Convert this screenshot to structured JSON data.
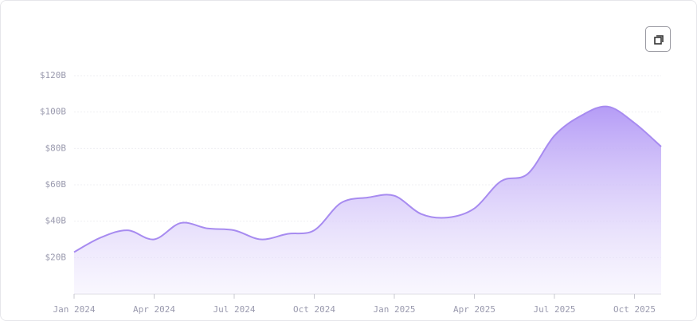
{
  "chart_data": {
    "type": "area",
    "categories": [
      "Jan 2024",
      null,
      null,
      "Apr 2024",
      null,
      null,
      "Jul 2024",
      null,
      null,
      "Oct 2024",
      null,
      null,
      "Jan 2025",
      null,
      null,
      "Apr 2025",
      null,
      null,
      "Jul 2025",
      null,
      null,
      "Oct 2025",
      null
    ],
    "values": [
      23,
      31,
      35,
      30,
      39,
      36,
      35,
      30,
      33,
      35,
      50,
      53,
      54,
      44,
      42,
      47,
      62,
      66,
      87,
      98,
      103,
      94,
      81
    ],
    "color": "#a78bf0",
    "ylim": [
      0,
      120
    ],
    "yticks": [
      {
        "value": 20,
        "label": "$20B"
      },
      {
        "value": 40,
        "label": "$40B"
      },
      {
        "value": 60,
        "label": "$60B"
      },
      {
        "value": 80,
        "label": "$80B"
      },
      {
        "value": 100,
        "label": "$100B"
      },
      {
        "value": 120,
        "label": "$120B"
      }
    ],
    "grid": true
  }
}
